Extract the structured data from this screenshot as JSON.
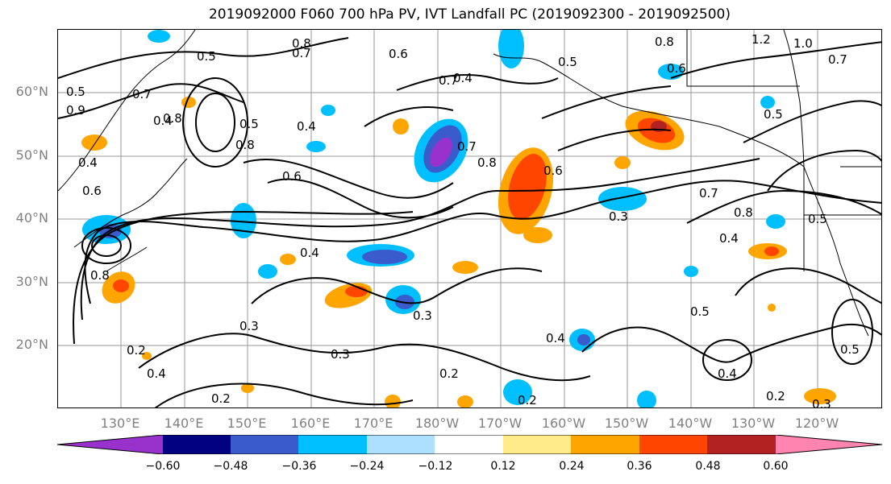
{
  "title": "2019092000 F060 700 hPa PV, IVT Landfall PC (2019092300 - 2019092500)",
  "lat_labels": [
    "60°N",
    "50°N",
    "40°N",
    "30°N",
    "20°N"
  ],
  "lon_labels": [
    "130°E",
    "140°E",
    "150°E",
    "160°E",
    "170°E",
    "180°W",
    "170°W",
    "160°W",
    "150°W",
    "140°W",
    "130°W",
    "120°W"
  ],
  "colorbar": {
    "ticks": [
      "−0.60",
      "−0.48",
      "−0.36",
      "−0.24",
      "−0.12",
      "0.12",
      "0.24",
      "0.36",
      "0.48",
      "0.60"
    ],
    "colors": [
      "#9932CC",
      "#000080",
      "#3A5BCC",
      "#00BFFF",
      "#ADDFFF",
      "#FFFFFF",
      "#FFEB8A",
      "#FFA500",
      "#FF4500",
      "#B22222",
      "#FF85B0"
    ]
  },
  "contour_labels": [
    "0.8",
    "0.5",
    "0.7",
    "0.6",
    "0.5",
    "0.7",
    "0.4",
    "0.8",
    "1.2",
    "1.0",
    "0.7",
    "0.6",
    "0.9",
    "0.5",
    "0.7",
    "0.4",
    "0.8",
    "0.4",
    "0.5",
    "0.6",
    "0.6",
    "0.8",
    "0.6",
    "0.7",
    "0.4",
    "0.3",
    "0.7",
    "0.8",
    "0.4",
    "0.5",
    "0.3",
    "0.4",
    "0.3",
    "0.3",
    "0.5",
    "0.4",
    "0.2",
    "0.4",
    "0.2",
    "0.2",
    "0.2",
    "0.4",
    "0.5",
    "0.2",
    "0.3",
    "0.5",
    "0.8",
    "0.8"
  ]
}
